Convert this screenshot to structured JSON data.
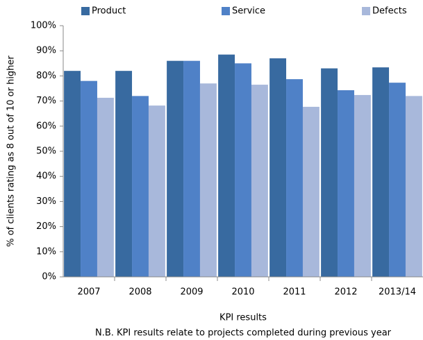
{
  "chart_data": {
    "type": "bar",
    "y_label": "% of clients rating as 8 out of 10 or higher",
    "x_label": "KPI results",
    "note": "N.B. KPI results relate to projects completed during previous year",
    "categories": [
      "2007",
      "2008",
      "2009",
      "2010",
      "2011",
      "2012",
      "2013/14"
    ],
    "series": [
      {
        "name": "Product",
        "color": "#386aa0",
        "values": [
          82,
          82,
          86,
          88.5,
          87,
          83,
          83.4
        ]
      },
      {
        "name": "Service",
        "color": "#4f81c7",
        "values": [
          78,
          72,
          86,
          85,
          78.7,
          74.3,
          77.3
        ]
      },
      {
        "name": "Defects",
        "color": "#a8b8db",
        "values": [
          71.3,
          68.2,
          77,
          76.5,
          67.7,
          72.4,
          72
        ]
      }
    ],
    "ylim": [
      0,
      100
    ],
    "yticks": [
      {
        "value": 0,
        "label": "0%"
      },
      {
        "value": 10,
        "label": "10%"
      },
      {
        "value": 20,
        "label": "20%"
      },
      {
        "value": 30,
        "label": "30%"
      },
      {
        "value": 40,
        "label": "40%"
      },
      {
        "value": 50,
        "label": "50%"
      },
      {
        "value": 60,
        "label": "60%"
      },
      {
        "value": 70,
        "label": "70%"
      },
      {
        "value": 80,
        "label": "80%"
      },
      {
        "value": 90,
        "label": "90%"
      },
      {
        "value": 100,
        "label": "100%"
      }
    ],
    "grid": false
  }
}
